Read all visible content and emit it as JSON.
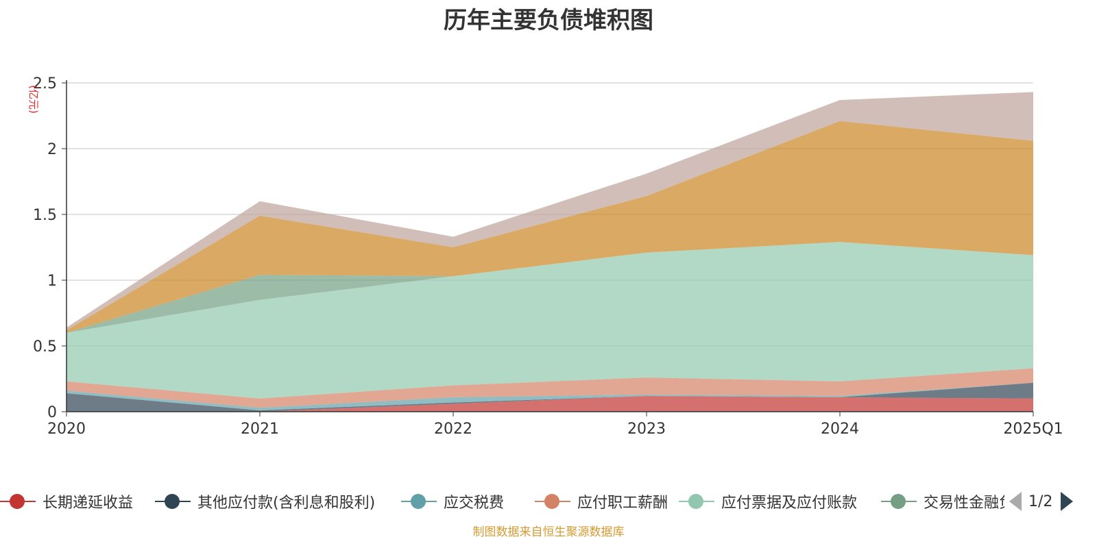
{
  "chart_data": {
    "type": "area",
    "stacked": true,
    "title": "历年主要负债堆积图",
    "ylabel": "(亿元)",
    "ylim": [
      0,
      2.5
    ],
    "yticks": [
      "0",
      "0.5",
      "1",
      "1.5",
      "2",
      "2.5"
    ],
    "grid": true,
    "legend_position": "bottom",
    "categories": [
      "2020",
      "2021",
      "2022",
      "2023",
      "2024",
      "2025Q1"
    ],
    "series": [
      {
        "name": "长期递延收益",
        "color": "#c23531",
        "values": [
          0.0,
          0.0,
          0.06,
          0.12,
          0.11,
          0.1
        ]
      },
      {
        "name": "其他应付款(含利息和股利)",
        "color": "#2f4554",
        "values": [
          0.14,
          0.01,
          0.01,
          0.0,
          0.0,
          0.12
        ]
      },
      {
        "name": "应交税费",
        "color": "#61a0a8",
        "values": [
          0.02,
          0.02,
          0.04,
          0.01,
          0.01,
          0.0
        ]
      },
      {
        "name": "应付职工薪酬",
        "color": "#d48265",
        "values": [
          0.07,
          0.07,
          0.09,
          0.13,
          0.11,
          0.11
        ]
      },
      {
        "name": "应付票据及应付账款",
        "color": "#91c7ae",
        "values": [
          0.37,
          0.75,
          0.83,
          0.95,
          1.06,
          0.86
        ]
      },
      {
        "name": "交易性金融负债",
        "color": "#749f83",
        "values": [
          0.0,
          0.19,
          0.0,
          0.0,
          0.0,
          0.0
        ]
      },
      {
        "name": "",
        "color": "#ca8622",
        "values": [
          0.02,
          0.45,
          0.22,
          0.43,
          0.92,
          0.87
        ]
      },
      {
        "name": "",
        "color": "#bda29a",
        "values": [
          0.02,
          0.11,
          0.08,
          0.17,
          0.16,
          0.37
        ]
      }
    ]
  },
  "legend": {
    "items": [
      {
        "label": "长期递延收益",
        "color": "#c23531"
      },
      {
        "label": "其他应付款(含利息和股利)",
        "color": "#2f4554"
      },
      {
        "label": "应交税费",
        "color": "#61a0a8"
      },
      {
        "label": "应付职工薪酬",
        "color": "#d48265"
      },
      {
        "label": "应付票据及应付账款",
        "color": "#91c7ae"
      },
      {
        "label": "交易性金融负债",
        "color": "#749f83"
      }
    ],
    "page": "1/2"
  },
  "source_note": "制图数据来自恒生聚源数据库"
}
